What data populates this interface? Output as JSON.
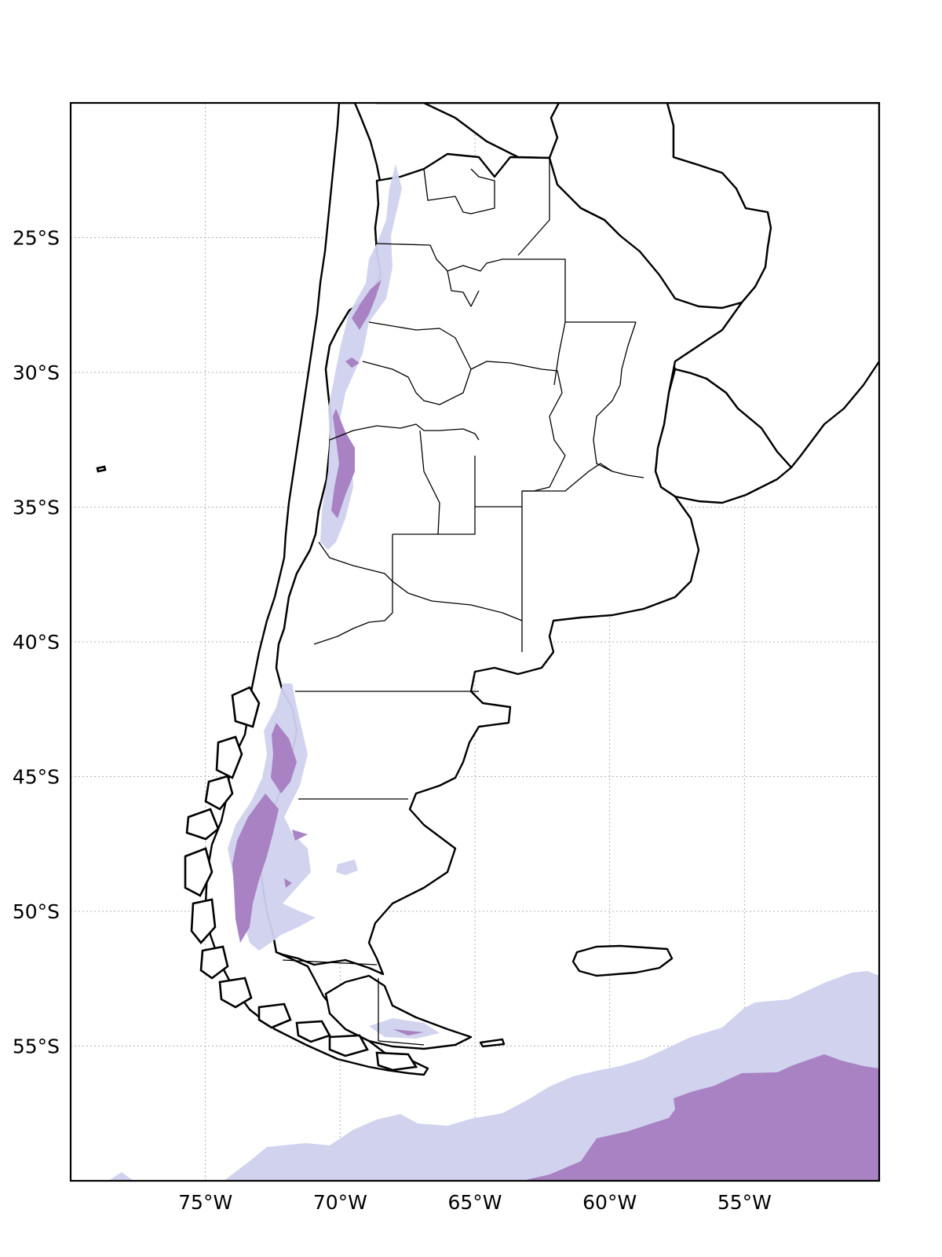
{
  "map": {
    "region": "Argentina and surrounding region",
    "extent": {
      "lon_min": -80,
      "lon_max": -50,
      "lat_min": -60,
      "lat_max": -20
    },
    "gridlines": "dotted",
    "lon_ticks": [
      {
        "value": -75,
        "label": "75°W"
      },
      {
        "value": -70,
        "label": "70°W"
      },
      {
        "value": -65,
        "label": "65°W"
      },
      {
        "value": -60,
        "label": "60°W"
      },
      {
        "value": -55,
        "label": "55°W"
      }
    ],
    "lat_ticks": [
      {
        "value": -25,
        "label": "25°S"
      },
      {
        "value": -30,
        "label": "30°S"
      },
      {
        "value": -35,
        "label": "35°S"
      },
      {
        "value": -40,
        "label": "40°S"
      },
      {
        "value": -45,
        "label": "45°S"
      },
      {
        "value": -50,
        "label": "50°S"
      },
      {
        "value": -55,
        "label": "55°S"
      }
    ],
    "colors": {
      "fill_level_low": "#d0d2ee",
      "fill_level_high": "#a882c2",
      "land": "#ffffff",
      "outline": "#000000",
      "grid": "#b0b0b0"
    }
  }
}
